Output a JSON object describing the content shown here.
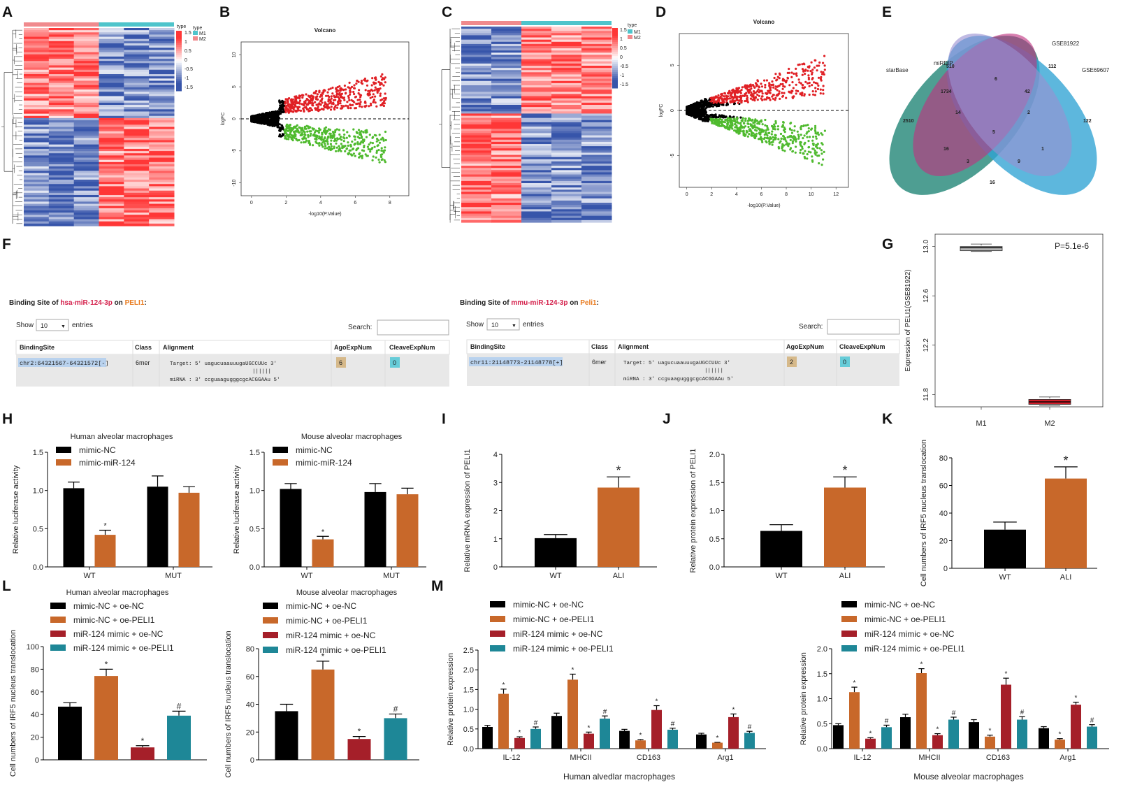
{
  "figure": {
    "panel_letters": [
      "A",
      "B",
      "C",
      "D",
      "E",
      "F",
      "G",
      "H",
      "I",
      "J",
      "K",
      "L",
      "M"
    ],
    "heatmap_A": {
      "legend_type": "type",
      "legend_groups": [
        "M1",
        "M2"
      ],
      "scale": [
        "1.5",
        "1",
        "0.5",
        "0",
        "-0.5",
        "-1",
        "-1.5"
      ]
    },
    "heatmap_C": {
      "legend_type": "type",
      "legend_groups": [
        "M1",
        "M2"
      ],
      "scale": [
        "1.5",
        "1",
        "0.5",
        "0",
        "-0.5",
        "-1",
        "-1.5"
      ]
    },
    "venn": {
      "sets": [
        "miRDIP",
        "GSE81922",
        "starBase",
        "GSE69607"
      ],
      "counts": {
        "mirdip_only": "510",
        "gse81922_only": "112",
        "starbase_only": "2510",
        "gse69607_only": "122",
        "mirdip_gse81922": "6",
        "gse81922_gse69607": "42",
        "starbase_mirdip": "1734",
        "starbase_mirdip_gse81922": "14",
        "mirdip_gse81922_gse69607": "2",
        "all_four": "5",
        "starbase_gse81922": "16",
        "gse81922_gse69607_only": "1",
        "starbase_gse81922_gse69607": "3",
        "starbase_mirdip_gse69607": "9",
        "starbase_gse69607": "16"
      }
    },
    "binding_human": {
      "title_prefix": "Binding Site of ",
      "mirna": "hsa-miR-124-3p",
      "on": " on ",
      "gene": "PELI1",
      "colon": ":",
      "show": "Show",
      "entries_n": "10",
      "entries": "entries",
      "search": "Search:",
      "cols": [
        "BindingSite",
        "Class",
        "Alignment",
        "AgoExpNum",
        "CleaveExpNum"
      ],
      "site": "chr2:64321567-64321572[-]",
      "class": "6mer",
      "target": "Target: 5' uagucuaauuugaUGCCUUc 3'",
      "bars": "||||||",
      "mirna_line": "miRNA : 3' ccguaagugggcgcACGGAAu 5'",
      "ago": "6",
      "cleave": "0"
    },
    "binding_mouse": {
      "title_prefix": "Binding Site of ",
      "mirna": "mmu-miR-124-3p",
      "on": " on ",
      "gene": "Peli1",
      "colon": ":",
      "show": "Show",
      "entries_n": "10",
      "entries": "entries",
      "search": "Search:",
      "cols": [
        "BindingSite",
        "Class",
        "Alignment",
        "AgoExpNum",
        "CleaveExpNum"
      ],
      "site": "chr11:21148773-21148778[+]",
      "class": "6mer",
      "target": "Target: 5' uagucuaauuugaUGCCUUc 3'",
      "bars": "||||||",
      "mirna_line": "miRNA : 3' ccguaagugggcgcACGGAAu 5'",
      "ago": "2",
      "cleave": "0"
    },
    "colors": {
      "black": "#000000",
      "orange": "#c8682a",
      "red": "#a51f29",
      "teal": "#1e8797",
      "heat_red": "#e8383b",
      "heat_blue": "#3a4fa8",
      "pink": "#f08a8d",
      "cyan": "#4ec4cb"
    }
  },
  "chart_data": [
    {
      "id": "B",
      "type": "scatter",
      "title": "Volcano",
      "xlabel": "-log10(P.Value)",
      "ylabel": "logFC",
      "xlim": [
        -0.6,
        9.1
      ],
      "ylim": [
        -12,
        12
      ],
      "xticks": [
        0,
        2,
        4,
        6,
        8
      ],
      "yticks": [
        -10,
        -5,
        0,
        5,
        10
      ],
      "threshold": 0
    },
    {
      "id": "D",
      "type": "scatter",
      "title": "Volcano",
      "xlabel": "-log10(P.Value)",
      "ylabel": "logFC",
      "xlim": [
        -0.6,
        13
      ],
      "ylim": [
        -8.5,
        8.5
      ],
      "xticks": [
        0,
        2,
        4,
        6,
        8,
        10,
        12
      ],
      "yticks": [
        -5,
        0,
        5
      ],
      "threshold": 0
    },
    {
      "id": "G",
      "type": "box",
      "title": "P=5.1e-6",
      "categories": [
        "M1",
        "M2"
      ],
      "ylabel": "Expression of PELI1(GSE81922)",
      "ylim": [
        11.7,
        13.1
      ],
      "yticks": [
        11.8,
        12.2,
        12.6,
        13.0
      ],
      "boxes": [
        {
          "name": "M1",
          "min": 12.96,
          "q1": 12.97,
          "median": 12.99,
          "q3": 13.0,
          "max": 13.02,
          "color": "#b5b5b5"
        },
        {
          "name": "M2",
          "min": 11.71,
          "q1": 11.72,
          "median": 11.74,
          "q3": 11.76,
          "max": 11.78,
          "color": "#d21e2b"
        }
      ]
    },
    {
      "id": "H1",
      "type": "bar",
      "title": "Human alveolar macrophages",
      "ylabel": "Relative luciferase activity",
      "categories": [
        "WT",
        "MUT"
      ],
      "ylim": [
        0,
        1.5
      ],
      "yticks": [
        0,
        0.5,
        1.0,
        1.5
      ],
      "series": [
        {
          "name": "mimic-NC",
          "values": [
            1.03,
            1.05
          ],
          "errors": [
            0.08,
            0.14
          ],
          "color": "#000000"
        },
        {
          "name": "mimic-miR-124",
          "values": [
            0.42,
            0.97
          ],
          "errors": [
            0.06,
            0.08
          ],
          "color": "#c8682a"
        }
      ],
      "marks": [
        {
          "s": 1,
          "i": 0,
          "m": "*"
        }
      ]
    },
    {
      "id": "H2",
      "type": "bar",
      "title": "Mouse alveolar macrophages",
      "ylabel": "Relative luciferase activity",
      "categories": [
        "WT",
        "MUT"
      ],
      "ylim": [
        0,
        1.5
      ],
      "yticks": [
        0,
        0.5,
        1.0,
        1.5
      ],
      "series": [
        {
          "name": "mimic-NC",
          "values": [
            1.02,
            0.98
          ],
          "errors": [
            0.07,
            0.11
          ],
          "color": "#000000"
        },
        {
          "name": "mimic-miR-124",
          "values": [
            0.36,
            0.95
          ],
          "errors": [
            0.04,
            0.08
          ],
          "color": "#c8682a"
        }
      ],
      "marks": [
        {
          "s": 1,
          "i": 0,
          "m": "*"
        }
      ]
    },
    {
      "id": "I",
      "type": "bar",
      "title": "",
      "ylabel": "Relative mRNA expression of PELI1",
      "categories": [
        "WT",
        "ALI"
      ],
      "ylim": [
        0,
        4
      ],
      "yticks": [
        0,
        1,
        2,
        3,
        4
      ],
      "series": [
        {
          "name": "",
          "values": [
            1.02,
            2.82
          ],
          "errors": [
            0.13,
            0.38
          ],
          "colors": [
            "#000000",
            "#c8682a"
          ]
        }
      ],
      "marks": [
        {
          "s": 0,
          "i": 1,
          "m": "*"
        }
      ]
    },
    {
      "id": "J",
      "type": "bar",
      "title": "",
      "ylabel": "Relative protein expression of PELI1",
      "categories": [
        "WT",
        "ALI"
      ],
      "ylim": [
        0,
        2.0
      ],
      "yticks": [
        0,
        0.5,
        1.0,
        1.5,
        2.0
      ],
      "series": [
        {
          "name": "",
          "values": [
            0.64,
            1.41
          ],
          "errors": [
            0.11,
            0.19
          ],
          "colors": [
            "#000000",
            "#c8682a"
          ]
        }
      ],
      "marks": [
        {
          "s": 0,
          "i": 1,
          "m": "*"
        }
      ]
    },
    {
      "id": "K",
      "type": "bar",
      "title": "",
      "ylabel": "Cell numbers of IRF5 nucleus translocation",
      "categories": [
        "WT",
        "ALI"
      ],
      "ylim": [
        0,
        80
      ],
      "yticks": [
        0,
        20,
        40,
        60,
        80
      ],
      "series": [
        {
          "name": "",
          "values": [
            28,
            65
          ],
          "errors": [
            5.5,
            8.5
          ],
          "colors": [
            "#000000",
            "#c8682a"
          ]
        }
      ],
      "marks": [
        {
          "s": 0,
          "i": 1,
          "m": "*"
        }
      ]
    },
    {
      "id": "L1",
      "type": "bar",
      "title": "Human alveolar macrophages",
      "ylabel": "Cell numbers of IRF5 nucleus translocation",
      "categories": [
        ""
      ],
      "ylim": [
        0,
        100
      ],
      "yticks": [
        0,
        20,
        40,
        60,
        80,
        100
      ],
      "series": [
        {
          "name": "mimic-NC + oe-NC",
          "values": [
            47
          ],
          "errors": [
            3.5
          ],
          "color": "#000000"
        },
        {
          "name": "mimic-NC + oe-PELI1",
          "values": [
            74
          ],
          "errors": [
            6
          ],
          "color": "#c8682a"
        },
        {
          "name": "miR-124 mimic + oe-NC",
          "values": [
            11
          ],
          "errors": [
            1.5
          ],
          "color": "#a51f29"
        },
        {
          "name": "miR-124 mimic + oe-PELI1",
          "values": [
            39
          ],
          "errors": [
            4
          ],
          "color": "#1e8797"
        }
      ],
      "marks": [
        {
          "s": 1,
          "i": 0,
          "m": "*"
        },
        {
          "s": 2,
          "i": 0,
          "m": "*"
        },
        {
          "s": 3,
          "i": 0,
          "m": "#"
        }
      ]
    },
    {
      "id": "L2",
      "type": "bar",
      "title": "Mouse alveolar macrophages",
      "ylabel": "Cell numbers of IRF5 nucleus translocation",
      "categories": [
        ""
      ],
      "ylim": [
        0,
        80
      ],
      "yticks": [
        0,
        20,
        40,
        60,
        80
      ],
      "series": [
        {
          "name": "mimic-NC + oe-NC",
          "values": [
            35
          ],
          "errors": [
            5
          ],
          "color": "#000000"
        },
        {
          "name": "mimic-NC + oe-PELI1",
          "values": [
            65
          ],
          "errors": [
            6
          ],
          "color": "#c8682a"
        },
        {
          "name": "miR-124 mimic + oe-NC",
          "values": [
            15
          ],
          "errors": [
            1.8
          ],
          "color": "#a51f29"
        },
        {
          "name": "miR-124 mimic + oe-PELI1",
          "values": [
            30
          ],
          "errors": [
            3
          ],
          "color": "#1e8797"
        }
      ],
      "marks": [
        {
          "s": 1,
          "i": 0,
          "m": "*"
        },
        {
          "s": 2,
          "i": 0,
          "m": "*"
        },
        {
          "s": 3,
          "i": 0,
          "m": "#"
        }
      ]
    },
    {
      "id": "M1",
      "type": "bar",
      "title": "",
      "xlabel": "Human alvedlar macrophages",
      "ylabel": "Relative protein expression",
      "categories": [
        "IL-12",
        "MHCII",
        "CD163",
        "Arg1"
      ],
      "ylim": [
        0,
        2.5
      ],
      "yticks": [
        0,
        0.5,
        1.0,
        1.5,
        2.0,
        2.5
      ],
      "series": [
        {
          "name": "mimic-NC + oe-NC",
          "values": [
            0.55,
            0.83,
            0.45,
            0.36
          ],
          "errors": [
            0.04,
            0.07,
            0.04,
            0.03
          ],
          "color": "#000000"
        },
        {
          "name": "mimic-NC + oe-PELI1",
          "values": [
            1.39,
            1.75,
            0.21,
            0.15
          ],
          "errors": [
            0.12,
            0.14,
            0.02,
            0.01
          ],
          "color": "#c8682a"
        },
        {
          "name": "miR-124 mimic + oe-NC",
          "values": [
            0.27,
            0.38,
            0.98,
            0.8
          ],
          "errors": [
            0.03,
            0.04,
            0.11,
            0.08
          ],
          "color": "#a51f29"
        },
        {
          "name": "miR-124 mimic + oe-PELI1",
          "values": [
            0.5,
            0.76,
            0.48,
            0.4
          ],
          "errors": [
            0.05,
            0.07,
            0.04,
            0.04
          ],
          "color": "#1e8797"
        }
      ],
      "marks": [
        {
          "s": 1,
          "i": 0,
          "m": "*"
        },
        {
          "s": 2,
          "i": 0,
          "m": "*"
        },
        {
          "s": 3,
          "i": 0,
          "m": "#"
        },
        {
          "s": 1,
          "i": 1,
          "m": "*"
        },
        {
          "s": 2,
          "i": 1,
          "m": "*"
        },
        {
          "s": 3,
          "i": 1,
          "m": "#"
        },
        {
          "s": 1,
          "i": 2,
          "m": "*"
        },
        {
          "s": 2,
          "i": 2,
          "m": "*"
        },
        {
          "s": 3,
          "i": 2,
          "m": "#"
        },
        {
          "s": 1,
          "i": 3,
          "m": "*"
        },
        {
          "s": 2,
          "i": 3,
          "m": "*"
        },
        {
          "s": 3,
          "i": 3,
          "m": "#"
        }
      ]
    },
    {
      "id": "M2",
      "type": "bar",
      "title": "",
      "xlabel": "Mouse alveolar macrophages",
      "ylabel": "Relative protein expression",
      "categories": [
        "IL-12",
        "MHCII",
        "CD163",
        "Arg1"
      ],
      "ylim": [
        0,
        2.0
      ],
      "yticks": [
        0,
        0.5,
        1.0,
        1.5,
        2.0
      ],
      "series": [
        {
          "name": "mimic-NC + oe-NC",
          "values": [
            0.47,
            0.63,
            0.53,
            0.41
          ],
          "errors": [
            0.03,
            0.06,
            0.05,
            0.03
          ],
          "color": "#000000"
        },
        {
          "name": "mimic-NC + oe-PELI1",
          "values": [
            1.13,
            1.51,
            0.24,
            0.18
          ],
          "errors": [
            0.1,
            0.09,
            0.03,
            0.02
          ],
          "color": "#c8682a"
        },
        {
          "name": "miR-124 mimic + oe-NC",
          "values": [
            0.2,
            0.27,
            1.28,
            0.88
          ],
          "errors": [
            0.02,
            0.03,
            0.13,
            0.05
          ],
          "color": "#a51f29"
        },
        {
          "name": "miR-124 mimic + oe-PELI1",
          "values": [
            0.43,
            0.58,
            0.58,
            0.44
          ],
          "errors": [
            0.04,
            0.05,
            0.06,
            0.04
          ],
          "color": "#1e8797"
        }
      ],
      "marks": [
        {
          "s": 1,
          "i": 0,
          "m": "*"
        },
        {
          "s": 2,
          "i": 0,
          "m": "*"
        },
        {
          "s": 3,
          "i": 0,
          "m": "#"
        },
        {
          "s": 1,
          "i": 1,
          "m": "*"
        },
        {
          "s": 2,
          "i": 1,
          "m": "*"
        },
        {
          "s": 3,
          "i": 1,
          "m": "#"
        },
        {
          "s": 1,
          "i": 2,
          "m": "*"
        },
        {
          "s": 2,
          "i": 2,
          "m": "*"
        },
        {
          "s": 3,
          "i": 2,
          "m": "#"
        },
        {
          "s": 1,
          "i": 3,
          "m": "*"
        },
        {
          "s": 2,
          "i": 3,
          "m": "*"
        },
        {
          "s": 3,
          "i": 3,
          "m": "#"
        }
      ]
    }
  ]
}
